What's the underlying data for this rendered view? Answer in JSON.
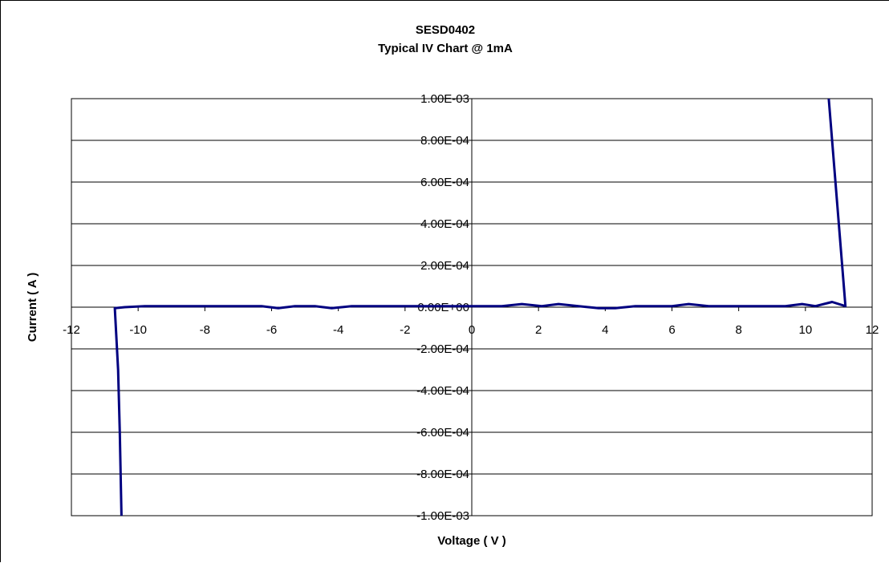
{
  "chart_data": {
    "type": "line",
    "title": "SESD0402",
    "subtitle": "Typical IV Chart @ 1mA",
    "xlabel": "Voltage ( V )",
    "ylabel": "Current ( A )",
    "xlim": [
      -12,
      12
    ],
    "ylim": [
      -0.001,
      0.001
    ],
    "x_ticks": [
      -12,
      -10,
      -8,
      -6,
      -4,
      -2,
      0,
      2,
      4,
      6,
      8,
      10,
      12
    ],
    "x_tick_labels": [
      "-12",
      "-10",
      "-8",
      "-6",
      "-4",
      "-2",
      "0",
      "2",
      "4",
      "6",
      "8",
      "10",
      "12"
    ],
    "y_ticks": [
      0.001,
      0.0008,
      0.0006,
      0.0004,
      0.0002,
      0,
      -0.0002,
      -0.0004,
      -0.0006,
      -0.0008,
      -0.001
    ],
    "y_tick_labels": [
      "1.00E-03",
      "8.00E-04",
      "6.00E-04",
      "4.00E-04",
      "2.00E-04",
      "0.00E+00",
      "-2.00E-04",
      "-4.00E-04",
      "-6.00E-04",
      "-8.00E-04",
      "-1.00E-03"
    ],
    "grid": "horizontal",
    "line_color": "#000080",
    "series": [
      {
        "x": [
          -10.5,
          -10.55,
          -10.6,
          -10.7,
          -10.4,
          -9.8,
          -9.2,
          -8.6,
          -8.0,
          -7.4,
          -6.8,
          -6.3,
          -5.8,
          -5.3,
          -4.7,
          -4.2,
          -3.6,
          -3.0,
          -2.5,
          -1.9,
          -1.3,
          -0.8,
          -0.2,
          0.4,
          0.9,
          1.5,
          2.1,
          2.6,
          3.2,
          3.8,
          4.3,
          4.9,
          5.4,
          6.0,
          6.5,
          7.1,
          7.7,
          8.3,
          8.8,
          9.4,
          9.9,
          10.3,
          10.8,
          11.2,
          10.7
        ],
        "y": [
          -0.001,
          -0.0006,
          -0.0003,
          -5e-06,
          0.0,
          5e-06,
          5e-06,
          5e-06,
          5e-06,
          5e-06,
          5e-06,
          5e-06,
          -5e-06,
          5e-06,
          5e-06,
          -5e-06,
          5e-06,
          5e-06,
          5e-06,
          5e-06,
          5e-06,
          5e-06,
          5e-06,
          5e-06,
          5e-06,
          1.5e-05,
          5e-06,
          1.5e-05,
          5e-06,
          -5e-06,
          -5e-06,
          5e-06,
          5e-06,
          5e-06,
          1.5e-05,
          5e-06,
          5e-06,
          5e-06,
          5e-06,
          5e-06,
          1.5e-05,
          5e-06,
          2.5e-05,
          5e-06,
          0.001
        ]
      }
    ]
  }
}
